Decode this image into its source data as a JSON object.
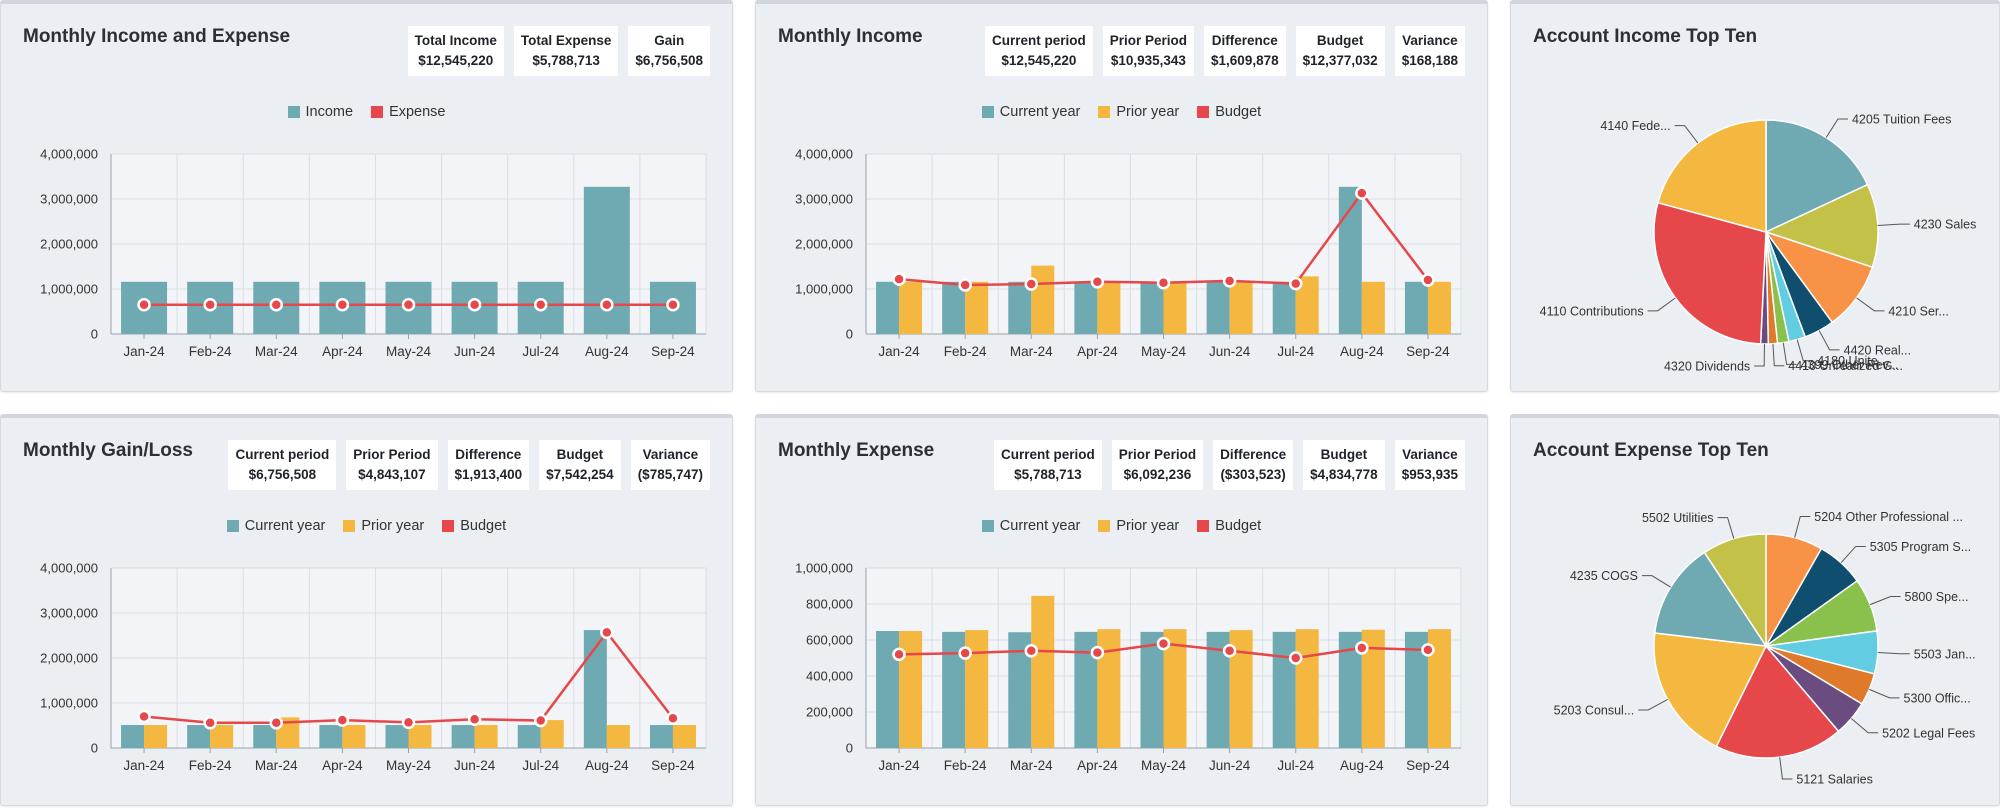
{
  "colors": {
    "teal": "#6fa9b1",
    "orange": "#f4b73f",
    "red": "#e6474a",
    "grid": "#d9dee5",
    "plot_bg": "#f2f4f7",
    "axis": "#9aa3ad"
  },
  "cards": [
    {
      "id": "c1",
      "title": "Monthly Income and Expense",
      "stats": [
        {
          "label": "Total Income",
          "value": "$12,545,220"
        },
        {
          "label": "Total Expense",
          "value": "$5,788,713"
        },
        {
          "label": "Gain",
          "value": "$6,756,508"
        }
      ],
      "legend": [
        {
          "label": "Income",
          "color": "#6fa9b1"
        },
        {
          "label": "Expense",
          "color": "#e6474a"
        }
      ]
    },
    {
      "id": "c2",
      "title": "Monthly Income",
      "stats": [
        {
          "label": "Current period",
          "value": "$12,545,220"
        },
        {
          "label": "Prior Period",
          "value": "$10,935,343"
        },
        {
          "label": "Difference",
          "value": "$1,609,878"
        },
        {
          "label": "Budget",
          "value": "$12,377,032"
        },
        {
          "label": "Variance",
          "value": "$168,188"
        }
      ],
      "legend": [
        {
          "label": "Current year",
          "color": "#6fa9b1"
        },
        {
          "label": "Prior year",
          "color": "#f4b73f"
        },
        {
          "label": "Budget",
          "color": "#e6474a"
        }
      ]
    },
    {
      "id": "c3",
      "title": "Account Income Top Ten",
      "stats": [],
      "legend": []
    },
    {
      "id": "c4",
      "title": "Monthly Gain/Loss",
      "stats": [
        {
          "label": "Current period",
          "value": "$6,756,508"
        },
        {
          "label": "Prior Period",
          "value": "$4,843,107"
        },
        {
          "label": "Difference",
          "value": "$1,913,400"
        },
        {
          "label": "Budget",
          "value": "$7,542,254"
        },
        {
          "label": "Variance",
          "value": "($785,747)"
        }
      ],
      "legend": [
        {
          "label": "Current year",
          "color": "#6fa9b1"
        },
        {
          "label": "Prior year",
          "color": "#f4b73f"
        },
        {
          "label": "Budget",
          "color": "#e6474a"
        }
      ]
    },
    {
      "id": "c5",
      "title": "Monthly Expense",
      "stats": [
        {
          "label": "Current period",
          "value": "$5,788,713"
        },
        {
          "label": "Prior Period",
          "value": "$6,092,236"
        },
        {
          "label": "Difference",
          "value": "($303,523)"
        },
        {
          "label": "Budget",
          "value": "$4,834,778"
        },
        {
          "label": "Variance",
          "value": "$953,935"
        }
      ],
      "legend": [
        {
          "label": "Current year",
          "color": "#6fa9b1"
        },
        {
          "label": "Prior year",
          "color": "#f4b73f"
        },
        {
          "label": "Budget",
          "color": "#e6474a"
        }
      ]
    },
    {
      "id": "c6",
      "title": "Account Expense Top Ten",
      "stats": [],
      "legend": []
    }
  ],
  "chart_data": [
    {
      "card": "c1",
      "type": "bar",
      "title": "Monthly Income and Expense",
      "categories": [
        "Jan-24",
        "Feb-24",
        "Mar-24",
        "Apr-24",
        "May-24",
        "Jun-24",
        "Jul-24",
        "Aug-24",
        "Sep-24"
      ],
      "ylim": [
        0,
        4000000
      ],
      "yticks": [
        0,
        1000000,
        2000000,
        3000000,
        4000000
      ],
      "ytick_labels": [
        "0",
        "1,000,000",
        "2,000,000",
        "3,000,000",
        "4,000,000"
      ],
      "series": [
        {
          "name": "Income",
          "kind": "bar",
          "color": "#6fa9b1",
          "values": [
            1160000,
            1160000,
            1160000,
            1160000,
            1160000,
            1160000,
            1160000,
            3270000,
            1160000
          ]
        },
        {
          "name": "Expense",
          "kind": "line",
          "color": "#e6474a",
          "values": [
            650000,
            650000,
            650000,
            650000,
            650000,
            650000,
            650000,
            650000,
            650000
          ]
        }
      ]
    },
    {
      "card": "c2",
      "type": "bar",
      "title": "Monthly Income",
      "categories": [
        "Jan-24",
        "Feb-24",
        "Mar-24",
        "Apr-24",
        "May-24",
        "Jun-24",
        "Jul-24",
        "Aug-24",
        "Sep-24"
      ],
      "ylim": [
        0,
        4000000
      ],
      "yticks": [
        0,
        1000000,
        2000000,
        3000000,
        4000000
      ],
      "ytick_labels": [
        "0",
        "1,000,000",
        "2,000,000",
        "3,000,000",
        "4,000,000"
      ],
      "series": [
        {
          "name": "Current year",
          "kind": "bar",
          "color": "#6fa9b1",
          "values": [
            1160000,
            1160000,
            1160000,
            1160000,
            1160000,
            1160000,
            1160000,
            3270000,
            1160000
          ]
        },
        {
          "name": "Prior year",
          "kind": "bar",
          "color": "#f4b73f",
          "values": [
            1160000,
            1160000,
            1520000,
            1160000,
            1160000,
            1160000,
            1280000,
            1160000,
            1160000
          ]
        },
        {
          "name": "Budget",
          "kind": "line",
          "color": "#e6474a",
          "values": [
            1220000,
            1090000,
            1110000,
            1160000,
            1140000,
            1180000,
            1120000,
            3130000,
            1200000
          ]
        }
      ]
    },
    {
      "card": "c3",
      "type": "pie",
      "title": "Account Income Top Ten",
      "labels": [
        "4205 Tuition Fees",
        "4230 Sales",
        "4210 Ser...",
        "4420 Real...",
        "4180 Unite...",
        "4399 Other Rev...",
        "4410 Unrealized G...",
        "4320 Dividends",
        "4110 Contributions",
        "4140 Fede..."
      ],
      "values": [
        16.5,
        11.0,
        9.0,
        4.0,
        2.2,
        1.5,
        1.2,
        1.0,
        26.0,
        19.0
      ],
      "colors": [
        "#6fa9b1",
        "#c4c148",
        "#f79247",
        "#0f4e6e",
        "#62cde2",
        "#8ac14c",
        "#df7a2b",
        "#6a4c80",
        "#e6474a",
        "#f4b73f"
      ]
    },
    {
      "card": "c4",
      "type": "bar",
      "title": "Monthly Gain/Loss",
      "categories": [
        "Jan-24",
        "Feb-24",
        "Mar-24",
        "Apr-24",
        "May-24",
        "Jun-24",
        "Jul-24",
        "Aug-24",
        "Sep-24"
      ],
      "ylim": [
        0,
        4000000
      ],
      "yticks": [
        0,
        1000000,
        2000000,
        3000000,
        4000000
      ],
      "ytick_labels": [
        "0",
        "1,000,000",
        "2,000,000",
        "3,000,000",
        "4,000,000"
      ],
      "series": [
        {
          "name": "Current year",
          "kind": "bar",
          "color": "#6fa9b1",
          "values": [
            510000,
            510000,
            510000,
            510000,
            510000,
            510000,
            510000,
            2620000,
            510000
          ]
        },
        {
          "name": "Prior year",
          "kind": "bar",
          "color": "#f4b73f",
          "values": [
            510000,
            510000,
            680000,
            510000,
            510000,
            510000,
            620000,
            510000,
            510000
          ]
        },
        {
          "name": "Budget",
          "kind": "line",
          "color": "#e6474a",
          "values": [
            700000,
            560000,
            560000,
            620000,
            570000,
            640000,
            610000,
            2570000,
            660000
          ]
        }
      ]
    },
    {
      "card": "c5",
      "type": "bar",
      "title": "Monthly Expense",
      "categories": [
        "Jan-24",
        "Feb-24",
        "Mar-24",
        "Apr-24",
        "May-24",
        "Jun-24",
        "Jul-24",
        "Aug-24",
        "Sep-24"
      ],
      "ylim": [
        0,
        1000000
      ],
      "yticks": [
        0,
        200000,
        400000,
        600000,
        800000,
        1000000
      ],
      "ytick_labels": [
        "0",
        "200,000",
        "400,000",
        "600,000",
        "800,000",
        "1,000,000"
      ],
      "series": [
        {
          "name": "Current year",
          "kind": "bar",
          "color": "#6fa9b1",
          "values": [
            650000,
            645000,
            643000,
            645000,
            645000,
            645000,
            645000,
            645000,
            645000
          ]
        },
        {
          "name": "Prior year",
          "kind": "bar",
          "color": "#f4b73f",
          "values": [
            650000,
            655000,
            845000,
            660000,
            660000,
            655000,
            660000,
            657000,
            660000
          ]
        },
        {
          "name": "Budget",
          "kind": "line",
          "color": "#e6474a",
          "values": [
            520000,
            527000,
            540000,
            530000,
            580000,
            540000,
            500000,
            556000,
            545000
          ]
        }
      ]
    },
    {
      "card": "c6",
      "type": "pie",
      "title": "Account Expense Top Ten",
      "labels": [
        "5204 Other Professional ...",
        "5305 Program S...",
        "5800 Spe...",
        "5503 Jan...",
        "5300 Offic...",
        "5202 Legal Fees",
        "5121 Salaries",
        "5203 Consul...",
        "4235 COGS",
        "5502 Utilities"
      ],
      "values": [
        8.0,
        6.7,
        7.5,
        6.0,
        4.5,
        5.0,
        18.0,
        19.0,
        13.5,
        9.0
      ],
      "colors": [
        "#f79247",
        "#0f4e6e",
        "#8ac14c",
        "#62cde2",
        "#df7a2b",
        "#6a4c80",
        "#e6474a",
        "#f4b73f",
        "#6fa9b1",
        "#c4c148"
      ]
    }
  ]
}
